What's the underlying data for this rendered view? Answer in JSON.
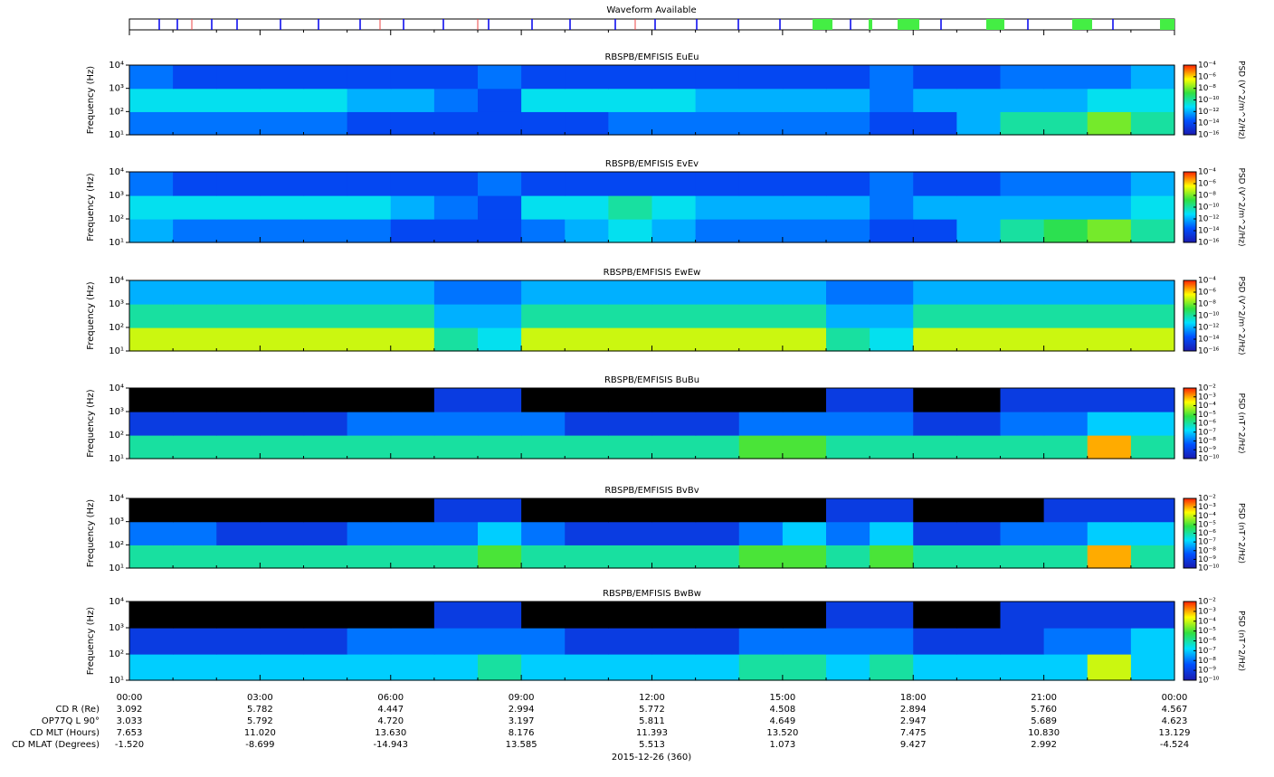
{
  "waveform": {
    "title": "Waveform Available"
  },
  "time_axis": {
    "labels": [
      "00:00",
      "03:00",
      "06:00",
      "09:00",
      "12:00",
      "15:00",
      "18:00",
      "21:00",
      "00:00"
    ],
    "date": "2015-12-26 (360)"
  },
  "ephemeris": [
    {
      "label": "CD R (Re)",
      "values": [
        "3.092",
        "5.782",
        "4.447",
        "2.994",
        "5.772",
        "4.508",
        "2.894",
        "5.760",
        "4.567"
      ]
    },
    {
      "label": "OP77Q L 90°",
      "values": [
        "3.033",
        "5.792",
        "4.720",
        "3.197",
        "5.811",
        "4.649",
        "2.947",
        "5.689",
        "4.623"
      ]
    },
    {
      "label": "CD MLT (Hours)",
      "values": [
        "7.653",
        "11.020",
        "13.630",
        "8.176",
        "11.393",
        "13.520",
        "7.475",
        "10.830",
        "13.129"
      ]
    },
    {
      "label": "CD MLAT (Degrees)",
      "values": [
        "-1.520",
        "-8.699",
        "-14.943",
        "13.585",
        "5.513",
        "1.073",
        "9.427",
        "2.992",
        "-4.524"
      ]
    }
  ],
  "chart_data": [
    {
      "type": "heatmap",
      "title": "RBSPB/EMFISIS  EuEu",
      "ylabel": "Frequency (Hz)",
      "yscale": "log",
      "ylim": [
        10,
        10000
      ],
      "yticks": [
        {
          "value": 10,
          "label": "10¹"
        },
        {
          "value": 100,
          "label": "10²"
        },
        {
          "value": 1000,
          "label": "10³"
        },
        {
          "value": 10000,
          "label": "10⁴"
        }
      ],
      "zlabel": "PSD (V^2/m^2/Hz)",
      "zlim": [
        1e-16,
        0.0001
      ],
      "under_color": "#000000",
      "zticks": [
        {
          "value": 0.0001,
          "label": "10⁻⁴"
        },
        {
          "value": 1e-06,
          "label": "10⁻⁶"
        },
        {
          "value": 1e-08,
          "label": "10⁻⁸"
        },
        {
          "value": 1e-10,
          "label": "10⁻¹⁰"
        },
        {
          "value": 1e-12,
          "label": "10⁻¹²"
        },
        {
          "value": 1e-14,
          "label": "10⁻¹⁴"
        },
        {
          "value": 1e-16,
          "label": "10⁻¹⁶"
        }
      ],
      "colormap": [
        "#1a1ab0",
        "#0050ff",
        "#00e0ff",
        "#30e040",
        "#ffff00",
        "#ff2000"
      ],
      "z": [
        [
          1e-13,
          1e-13,
          1e-13,
          1e-13,
          1e-13,
          1e-14,
          1e-14,
          1e-14,
          1e-14,
          1e-14,
          1e-14,
          1e-13,
          1e-13,
          1e-13,
          1e-13,
          1e-13,
          1e-13,
          1e-14,
          1e-14,
          1e-12,
          1e-10,
          1e-10,
          1e-08,
          1e-10
        ],
        [
          1e-11,
          1e-11,
          1e-11,
          1e-11,
          1e-11,
          1e-12,
          1e-12,
          1e-13,
          1e-14,
          1e-11,
          1e-11,
          1e-11,
          1e-11,
          1e-12,
          1e-12,
          1e-12,
          1e-12,
          1e-13,
          1e-12,
          1e-12,
          1e-12,
          1e-12,
          1e-11,
          1e-11
        ],
        [
          1e-13,
          1e-14,
          1e-14,
          1e-14,
          1e-14,
          1e-14,
          1e-14,
          1e-14,
          1e-13,
          1e-14,
          1e-14,
          1e-14,
          1e-14,
          1e-14,
          1e-14,
          1e-14,
          1e-14,
          1e-13,
          1e-14,
          1e-14,
          1e-13,
          1e-13,
          1e-13,
          1e-12
        ]
      ]
    },
    {
      "type": "heatmap",
      "title": "RBSPB/EMFISIS  EvEv",
      "ylabel": "Frequency (Hz)",
      "yscale": "log",
      "ylim": [
        10,
        10000
      ],
      "yticks": [
        {
          "value": 10,
          "label": "10¹"
        },
        {
          "value": 100,
          "label": "10²"
        },
        {
          "value": 1000,
          "label": "10³"
        },
        {
          "value": 10000,
          "label": "10⁴"
        }
      ],
      "zlabel": "PSD (V^2/m^2/Hz)",
      "zlim": [
        1e-16,
        0.0001
      ],
      "under_color": "#000000",
      "zticks": [
        {
          "value": 0.0001,
          "label": "10⁻⁴"
        },
        {
          "value": 1e-06,
          "label": "10⁻⁶"
        },
        {
          "value": 1e-08,
          "label": "10⁻⁸"
        },
        {
          "value": 1e-10,
          "label": "10⁻¹⁰"
        },
        {
          "value": 1e-12,
          "label": "10⁻¹²"
        },
        {
          "value": 1e-14,
          "label": "10⁻¹⁴"
        },
        {
          "value": 1e-16,
          "label": "10⁻¹⁶"
        }
      ],
      "colormap": [
        "#1a1ab0",
        "#0050ff",
        "#00e0ff",
        "#30e040",
        "#ffff00",
        "#ff2000"
      ],
      "z": [
        [
          1e-12,
          1e-13,
          1e-13,
          1e-13,
          1e-13,
          1e-13,
          1e-14,
          1e-14,
          1e-14,
          1e-13,
          1e-12,
          1e-11,
          1e-12,
          1e-13,
          1e-13,
          1e-13,
          1e-13,
          1e-14,
          1e-14,
          1e-12,
          1e-10,
          1e-09,
          1e-08,
          1e-10
        ],
        [
          1e-11,
          1e-11,
          1e-11,
          1e-11,
          1e-11,
          1e-11,
          1e-12,
          1e-13,
          1e-14,
          1e-11,
          1e-11,
          1e-10,
          1e-11,
          1e-12,
          1e-12,
          1e-12,
          1e-12,
          1e-13,
          1e-12,
          1e-12,
          1e-12,
          1e-12,
          1e-12,
          1e-11
        ],
        [
          1e-13,
          1e-14,
          1e-14,
          1e-14,
          1e-14,
          1e-14,
          1e-14,
          1e-14,
          1e-13,
          1e-14,
          1e-14,
          1e-14,
          1e-14,
          1e-14,
          1e-14,
          1e-14,
          1e-14,
          1e-13,
          1e-14,
          1e-14,
          1e-13,
          1e-13,
          1e-13,
          1e-12
        ]
      ]
    },
    {
      "type": "heatmap",
      "title": "RBSPB/EMFISIS  EwEw",
      "ylabel": "Frequency (Hz)",
      "yscale": "log",
      "ylim": [
        10,
        10000
      ],
      "yticks": [
        {
          "value": 10,
          "label": "10¹"
        },
        {
          "value": 100,
          "label": "10²"
        },
        {
          "value": 1000,
          "label": "10³"
        },
        {
          "value": 10000,
          "label": "10⁴"
        }
      ],
      "zlabel": "PSD (V^2/m^2/Hz)",
      "zlim": [
        1e-16,
        0.0001
      ],
      "under_color": "#000000",
      "zticks": [
        {
          "value": 0.0001,
          "label": "10⁻⁴"
        },
        {
          "value": 1e-06,
          "label": "10⁻⁶"
        },
        {
          "value": 1e-08,
          "label": "10⁻⁸"
        },
        {
          "value": 1e-10,
          "label": "10⁻¹⁰"
        },
        {
          "value": 1e-12,
          "label": "10⁻¹²"
        },
        {
          "value": 1e-14,
          "label": "10⁻¹⁴"
        },
        {
          "value": 1e-16,
          "label": "10⁻¹⁶"
        }
      ],
      "colormap": [
        "#1a1ab0",
        "#0050ff",
        "#00e0ff",
        "#30e040",
        "#ffff00",
        "#ff2000"
      ],
      "z": [
        [
          1e-07,
          1e-07,
          1e-07,
          1e-07,
          1e-07,
          1e-07,
          1e-07,
          1e-10,
          1e-11,
          1e-07,
          1e-07,
          1e-07,
          1e-07,
          1e-07,
          1e-07,
          1e-07,
          1e-10,
          1e-11,
          1e-07,
          1e-07,
          1e-07,
          1e-07,
          1e-07,
          1e-07
        ],
        [
          1e-10,
          1e-10,
          1e-10,
          1e-10,
          1e-10,
          1e-10,
          1e-10,
          1e-12,
          1e-12,
          1e-10,
          1e-10,
          1e-10,
          1e-10,
          1e-10,
          1e-10,
          1e-10,
          1e-12,
          1e-12,
          1e-10,
          1e-10,
          1e-10,
          1e-10,
          1e-10,
          1e-10
        ],
        [
          1e-12,
          1e-12,
          1e-12,
          1e-12,
          1e-12,
          1e-12,
          1e-12,
          1e-13,
          1e-13,
          1e-12,
          1e-12,
          1e-12,
          1e-12,
          1e-12,
          1e-12,
          1e-12,
          1e-13,
          1e-13,
          1e-12,
          1e-12,
          1e-12,
          1e-12,
          1e-12,
          1e-12
        ]
      ]
    },
    {
      "type": "heatmap",
      "title": "RBSPB/EMFISIS  BuBu",
      "ylabel": "Frequency (Hz)",
      "yscale": "log",
      "ylim": [
        10,
        10000
      ],
      "yticks": [
        {
          "value": 10,
          "label": "10¹"
        },
        {
          "value": 100,
          "label": "10²"
        },
        {
          "value": 1000,
          "label": "10³"
        },
        {
          "value": 10000,
          "label": "10⁴"
        }
      ],
      "zlabel": "PSD (nT^2/Hz)",
      "zlim": [
        1e-10,
        0.01
      ],
      "under_color": "#000000",
      "zticks": [
        {
          "value": 0.01,
          "label": "10⁻²"
        },
        {
          "value": 0.001,
          "label": "10⁻³"
        },
        {
          "value": 0.0001,
          "label": "10⁻⁴"
        },
        {
          "value": 1e-05,
          "label": "10⁻⁵"
        },
        {
          "value": 1e-06,
          "label": "10⁻⁶"
        },
        {
          "value": 1e-07,
          "label": "10⁻⁷"
        },
        {
          "value": 1e-08,
          "label": "10⁻⁸"
        },
        {
          "value": 1e-09,
          "label": "10⁻⁹"
        },
        {
          "value": 1e-10,
          "label": "10⁻¹⁰"
        }
      ],
      "colormap": [
        "#1a1ab0",
        "#0050ff",
        "#00e0ff",
        "#30e040",
        "#ffff00",
        "#ff2000"
      ],
      "z": [
        [
          1e-06,
          1e-06,
          1e-06,
          1e-06,
          1e-06,
          1e-06,
          1e-06,
          1e-06,
          1e-06,
          1e-06,
          1e-06,
          1e-06,
          1e-06,
          1e-06,
          1e-05,
          1e-05,
          1e-06,
          1e-06,
          1e-06,
          1e-06,
          1e-06,
          1e-06,
          0.001,
          1e-06
        ],
        [
          1e-09,
          1e-09,
          1e-09,
          1e-09,
          1e-09,
          1e-08,
          1e-08,
          1e-08,
          1e-08,
          1e-08,
          1e-09,
          1e-09,
          1e-09,
          1e-09,
          1e-08,
          1e-08,
          1e-08,
          1e-08,
          1e-09,
          1e-09,
          1e-08,
          1e-08,
          1e-07,
          1e-07
        ],
        [
          1e-11,
          1e-11,
          1e-11,
          1e-11,
          1e-11,
          1e-11,
          1e-11,
          1e-09,
          1e-09,
          1e-11,
          1e-11,
          1e-11,
          1e-11,
          1e-11,
          1e-11,
          1e-11,
          1e-09,
          1e-09,
          1e-11,
          1e-11,
          1e-09,
          1e-09,
          1e-09,
          1e-09
        ]
      ]
    },
    {
      "type": "heatmap",
      "title": "RBSPB/EMFISIS  BvBv",
      "ylabel": "Frequency (Hz)",
      "yscale": "log",
      "ylim": [
        10,
        10000
      ],
      "yticks": [
        {
          "value": 10,
          "label": "10¹"
        },
        {
          "value": 100,
          "label": "10²"
        },
        {
          "value": 1000,
          "label": "10³"
        },
        {
          "value": 10000,
          "label": "10⁴"
        }
      ],
      "zlabel": "PSD (nT^2/Hz)",
      "zlim": [
        1e-10,
        0.01
      ],
      "under_color": "#000000",
      "zticks": [
        {
          "value": 0.01,
          "label": "10⁻²"
        },
        {
          "value": 0.001,
          "label": "10⁻³"
        },
        {
          "value": 0.0001,
          "label": "10⁻⁴"
        },
        {
          "value": 1e-05,
          "label": "10⁻⁵"
        },
        {
          "value": 1e-06,
          "label": "10⁻⁶"
        },
        {
          "value": 1e-07,
          "label": "10⁻⁷"
        },
        {
          "value": 1e-08,
          "label": "10⁻⁸"
        },
        {
          "value": 1e-09,
          "label": "10⁻⁹"
        },
        {
          "value": 1e-10,
          "label": "10⁻¹⁰"
        }
      ],
      "colormap": [
        "#1a1ab0",
        "#0050ff",
        "#00e0ff",
        "#30e040",
        "#ffff00",
        "#ff2000"
      ],
      "z": [
        [
          1e-06,
          1e-06,
          1e-06,
          1e-06,
          1e-06,
          1e-06,
          1e-06,
          1e-06,
          1e-05,
          1e-06,
          1e-06,
          1e-06,
          1e-06,
          1e-06,
          1e-05,
          1e-05,
          1e-06,
          1e-05,
          1e-06,
          1e-06,
          1e-06,
          1e-06,
          0.001,
          1e-06
        ],
        [
          1e-08,
          1e-08,
          1e-09,
          1e-09,
          1e-09,
          1e-08,
          1e-08,
          1e-08,
          1e-07,
          1e-08,
          1e-09,
          1e-09,
          1e-09,
          1e-09,
          1e-08,
          1e-07,
          1e-08,
          1e-07,
          1e-09,
          1e-09,
          1e-08,
          1e-08,
          1e-07,
          1e-07
        ],
        [
          1e-11,
          1e-11,
          1e-11,
          1e-11,
          1e-11,
          1e-11,
          1e-11,
          1e-09,
          1e-09,
          1e-11,
          1e-11,
          1e-11,
          1e-11,
          1e-11,
          1e-11,
          1e-11,
          1e-09,
          1e-09,
          1e-11,
          1e-11,
          1e-11,
          1e-09,
          1e-09,
          1e-09
        ]
      ]
    },
    {
      "type": "heatmap",
      "title": "RBSPB/EMFISIS  BwBw",
      "ylabel": "Frequency (Hz)",
      "yscale": "log",
      "ylim": [
        10,
        10000
      ],
      "yticks": [
        {
          "value": 10,
          "label": "10¹"
        },
        {
          "value": 100,
          "label": "10²"
        },
        {
          "value": 1000,
          "label": "10³"
        },
        {
          "value": 10000,
          "label": "10⁴"
        }
      ],
      "zlabel": "PSD (nT^2/Hz)",
      "zlim": [
        1e-10,
        0.01
      ],
      "under_color": "#000000",
      "zticks": [
        {
          "value": 0.01,
          "label": "10⁻²"
        },
        {
          "value": 0.001,
          "label": "10⁻³"
        },
        {
          "value": 0.0001,
          "label": "10⁻⁴"
        },
        {
          "value": 1e-05,
          "label": "10⁻⁵"
        },
        {
          "value": 1e-06,
          "label": "10⁻⁶"
        },
        {
          "value": 1e-07,
          "label": "10⁻⁷"
        },
        {
          "value": 1e-08,
          "label": "10⁻⁸"
        },
        {
          "value": 1e-09,
          "label": "10⁻⁹"
        },
        {
          "value": 1e-10,
          "label": "10⁻¹⁰"
        }
      ],
      "colormap": [
        "#1a1ab0",
        "#0050ff",
        "#00e0ff",
        "#30e040",
        "#ffff00",
        "#ff2000"
      ],
      "z": [
        [
          1e-07,
          1e-07,
          1e-07,
          1e-07,
          1e-07,
          1e-07,
          1e-07,
          1e-07,
          1e-06,
          1e-07,
          1e-07,
          1e-07,
          1e-07,
          1e-07,
          1e-06,
          1e-06,
          1e-07,
          1e-06,
          1e-07,
          1e-07,
          1e-07,
          1e-07,
          0.0001,
          1e-07
        ],
        [
          1e-09,
          1e-09,
          1e-09,
          1e-09,
          1e-09,
          1e-08,
          1e-08,
          1e-08,
          1e-08,
          1e-08,
          1e-09,
          1e-09,
          1e-09,
          1e-09,
          1e-08,
          1e-08,
          1e-08,
          1e-08,
          1e-09,
          1e-09,
          1e-09,
          1e-08,
          1e-08,
          1e-07
        ],
        [
          1e-11,
          1e-11,
          1e-11,
          1e-11,
          1e-11,
          1e-11,
          1e-11,
          1e-09,
          1e-09,
          1e-11,
          1e-11,
          1e-11,
          1e-11,
          1e-11,
          1e-11,
          1e-11,
          1e-09,
          1e-09,
          1e-11,
          1e-11,
          1e-09,
          1e-09,
          1e-09,
          1e-09
        ]
      ]
    }
  ]
}
